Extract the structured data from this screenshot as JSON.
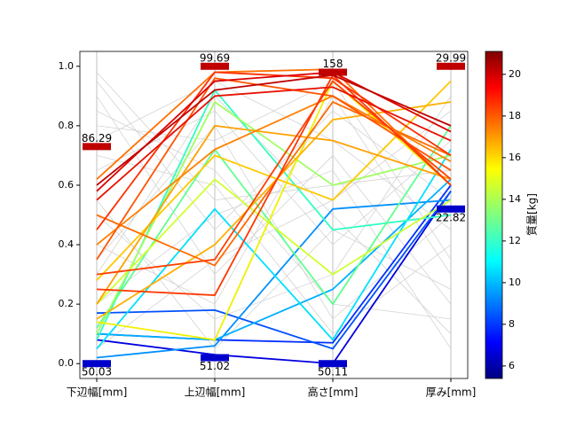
{
  "chart_data": {
    "type": "parallel",
    "categories": [
      "下辺幅[mm]",
      "上辺幅[mm]",
      "高さ[mm]",
      "厚み[mm]"
    ],
    "ylim": [
      -0.05,
      1.05
    ],
    "yticks": [
      {
        "value": 0,
        "label": "0.0"
      },
      {
        "value": 0.2,
        "label": "0.2"
      },
      {
        "value": 0.4,
        "label": "0.4"
      },
      {
        "value": 0.6,
        "label": "0.6"
      },
      {
        "value": 0.8,
        "label": "0.8"
      },
      {
        "value": 1,
        "label": "1.0"
      }
    ],
    "max_markers": [
      {
        "label": "86.29",
        "value": 0.73
      },
      {
        "label": "99.69",
        "value": 1.0
      },
      {
        "label": "158",
        "value": 0.98
      },
      {
        "label": "29.99",
        "value": 1.0
      }
    ],
    "min_markers": [
      {
        "label": "50.03",
        "value": 0.0
      },
      {
        "label": "51.02",
        "value": 0.02
      },
      {
        "label": "50.11",
        "value": 0.0
      },
      {
        "label": "22.82",
        "value": 0.52
      }
    ],
    "max_color": "#c00000",
    "min_color": "#0000cc",
    "colorbar": {
      "label": "質量[kg]",
      "lim": [
        5.4,
        21.1
      ],
      "ticks": [
        6,
        8,
        10,
        12,
        14,
        16,
        18,
        20
      ]
    },
    "series": [
      {
        "color": "#d3d3d3",
        "values": [
          0.9,
          0.3,
          0.7,
          0.2
        ]
      },
      {
        "color": "#d3d3d3",
        "values": [
          0.7,
          0.6,
          0.1,
          0.4
        ]
      },
      {
        "color": "#d3d3d3",
        "values": [
          0.3,
          0.9,
          0.5,
          0.1
        ]
      },
      {
        "color": "#d3d3d3",
        "values": [
          0.95,
          0.45,
          0.85,
          0.55
        ]
      },
      {
        "color": "#d3d3d3",
        "values": [
          0.5,
          0.15,
          0.3,
          0.9
        ]
      },
      {
        "color": "#d3d3d3",
        "values": [
          0.8,
          0.75,
          0.95,
          0.35
        ]
      },
      {
        "color": "#d3d3d3",
        "values": [
          0.2,
          0.5,
          0.65,
          0.05
        ]
      },
      {
        "color": "#d3d3d3",
        "values": [
          0.65,
          0.85,
          0.4,
          0.75
        ]
      },
      {
        "color": "#d3d3d3",
        "values": [
          0.4,
          0.2,
          0.9,
          0.3
        ]
      },
      {
        "color": "#d3d3d3",
        "values": [
          0.85,
          0.65,
          0.2,
          0.15
        ]
      },
      {
        "color": "#d3d3d3",
        "values": [
          0.05,
          0.35,
          0.55,
          0.85
        ]
      },
      {
        "color": "#d3d3d3",
        "values": [
          0.75,
          0.95,
          0.75,
          0.45
        ]
      },
      {
        "color": "#d3d3d3",
        "values": [
          0.55,
          0.05,
          0.45,
          0.25
        ]
      },
      {
        "color": "#d3d3d3",
        "values": [
          0.98,
          0.55,
          0.6,
          0.65
        ]
      },
      {
        "color": "#d3d3d3",
        "values": [
          0.35,
          0.8,
          0.15,
          0.5
        ]
      },
      {
        "color": "#0000e0",
        "values": [
          0.08,
          0.03,
          0.0,
          0.58
        ]
      },
      {
        "color": "#0030ff",
        "values": [
          0.1,
          0.08,
          0.07,
          0.6
        ]
      },
      {
        "color": "#0050ff",
        "values": [
          0.17,
          0.18,
          0.05,
          0.58
        ]
      },
      {
        "color": "#0090ff",
        "values": [
          0.02,
          0.06,
          0.52,
          0.55
        ]
      },
      {
        "color": "#00b0ff",
        "values": [
          0.1,
          0.08,
          0.25,
          0.62
        ]
      },
      {
        "color": "#00e0ff",
        "values": [
          0.05,
          0.52,
          0.08,
          0.72
        ]
      },
      {
        "color": "#30ffc0",
        "values": [
          0.08,
          0.92,
          0.45,
          0.5
        ]
      },
      {
        "color": "#60ff90",
        "values": [
          0.12,
          0.72,
          0.2,
          0.8
        ]
      },
      {
        "color": "#a0ff60",
        "values": [
          0.1,
          0.88,
          0.6,
          0.7
        ]
      },
      {
        "color": "#d0ff30",
        "values": [
          0.2,
          0.62,
          0.3,
          0.55
        ]
      },
      {
        "color": "#f0f000",
        "values": [
          0.14,
          0.08,
          0.95,
          0.6
        ]
      },
      {
        "color": "#ffc800",
        "values": [
          0.28,
          0.7,
          0.55,
          0.95
        ]
      },
      {
        "color": "#ffb000",
        "values": [
          0.15,
          0.4,
          0.82,
          0.88
        ]
      },
      {
        "color": "#ffa000",
        "values": [
          0.2,
          0.8,
          0.75,
          0.62
        ]
      },
      {
        "color": "#ff8000",
        "values": [
          0.4,
          0.72,
          0.9,
          0.68
        ]
      },
      {
        "color": "#ff7000",
        "values": [
          0.62,
          0.98,
          0.99,
          0.6
        ]
      },
      {
        "color": "#ff6a00",
        "values": [
          0.5,
          0.33,
          0.88,
          0.7
        ]
      },
      {
        "color": "#ff5500",
        "values": [
          0.35,
          0.96,
          0.9,
          0.65
        ]
      },
      {
        "color": "#ff4000",
        "values": [
          0.3,
          0.35,
          0.95,
          0.62
        ]
      },
      {
        "color": "#ff3800",
        "values": [
          0.25,
          0.23,
          0.97,
          0.6
        ]
      },
      {
        "color": "#ff3000",
        "values": [
          0.45,
          0.98,
          0.96,
          0.7
        ]
      },
      {
        "color": "#e81000",
        "values": [
          0.55,
          0.9,
          0.93,
          0.75
        ]
      },
      {
        "color": "#dd0000",
        "values": [
          0.58,
          0.95,
          0.98,
          0.78
        ]
      },
      {
        "color": "#c00000",
        "values": [
          0.6,
          0.92,
          0.97,
          0.8
        ]
      }
    ]
  }
}
